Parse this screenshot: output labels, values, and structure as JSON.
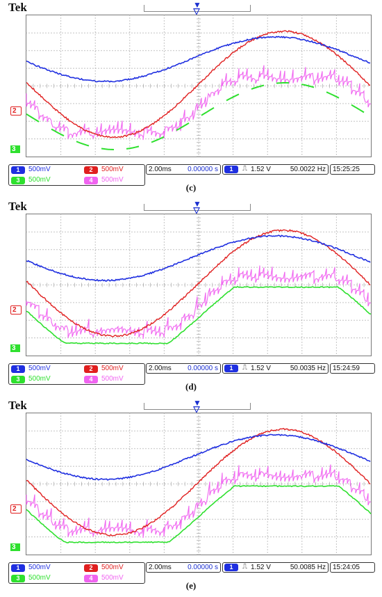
{
  "colors": {
    "ch1": "#1f2fe0",
    "ch2": "#e01f1f",
    "ch3": "#2ee02e",
    "ch4": "#f064f0",
    "readout": "#1a2fd0"
  },
  "panels": [
    {
      "caption": "(c)",
      "brand": "Tek",
      "ch_labels": {
        "ch1": "1",
        "ch2": "2",
        "ch3": "3",
        "ch4": "4"
      },
      "ch1": "500mV",
      "ch2": "500mV",
      "ch3": "500mV",
      "ch4": "500mV",
      "timebase": "2.00ms",
      "delay": "0.00000 s",
      "trig_ch": "1",
      "trig_level": "1.52 V",
      "freq": "50.0022 Hz",
      "time": "15:25:25",
      "variant": "c"
    },
    {
      "caption": "(d)",
      "brand": "Tek",
      "ch_labels": {
        "ch1": "1",
        "ch2": "2",
        "ch3": "3",
        "ch4": "4"
      },
      "ch1": "500mV",
      "ch2": "500mV",
      "ch3": "500mV",
      "ch4": "500mV",
      "timebase": "2.00ms",
      "delay": "0.00000 s",
      "trig_ch": "1",
      "trig_level": "1.52 V",
      "freq": "50.0035 Hz",
      "time": "15:24:59",
      "variant": "d"
    },
    {
      "caption": "(e)",
      "brand": "Tek",
      "ch_labels": {
        "ch1": "1",
        "ch2": "2",
        "ch3": "3",
        "ch4": "4"
      },
      "ch1": "500mV",
      "ch2": "500mV",
      "ch3": "500mV",
      "ch4": "500mV",
      "timebase": "2.00ms",
      "delay": "0.00000 s",
      "trig_ch": "1",
      "trig_level": "1.52 V",
      "freq": "50.0085 Hz",
      "time": "15:24:05",
      "variant": "e"
    }
  ]
}
